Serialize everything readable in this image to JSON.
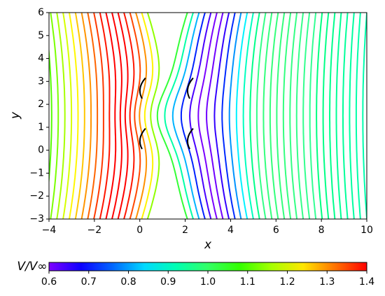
{
  "chart_data": [
    {
      "type": "streamplot",
      "x_label": "x",
      "y_label": "y",
      "xlim": [
        -4,
        10
      ],
      "ylim": [
        -3,
        6
      ],
      "xticks": [
        {
          "value": -4,
          "label": "−4"
        },
        {
          "value": -2,
          "label": "−2"
        },
        0,
        2,
        4,
        6,
        8,
        10
      ],
      "yticks": [
        {
          "value": -3,
          "label": "−3"
        },
        {
          "value": -2,
          "label": "−2"
        },
        {
          "value": -1,
          "label": "−1"
        },
        0,
        1,
        2,
        3,
        4,
        5,
        6
      ]
    },
    {
      "type": "colorbar",
      "label": "V/V∞",
      "clim": [
        0.6,
        1.4
      ],
      "ticks": [
        0.6,
        0.7,
        0.8,
        0.9,
        {
          "value": 1,
          "label": "1.0"
        },
        1.1,
        1.2,
        1.3,
        1.4
      ]
    }
  ]
}
